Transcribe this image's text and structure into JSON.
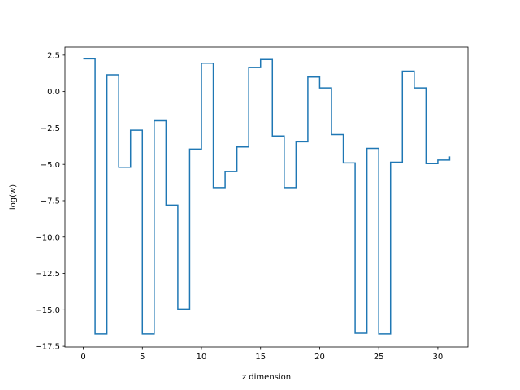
{
  "chart_data": {
    "type": "line",
    "drawstyle": "steps-post",
    "title": "",
    "xlabel": "z dimension",
    "ylabel": "log(w)",
    "xlim": [
      -1.55,
      32.55
    ],
    "ylim": [
      -17.55,
      3.05
    ],
    "xticks": [
      0,
      5,
      10,
      15,
      20,
      25,
      30
    ],
    "yticks": [
      2.5,
      0.0,
      -2.5,
      -5.0,
      -7.5,
      -10.0,
      -12.5,
      -15.0,
      -17.5
    ],
    "ytick_labels": [
      "2.5",
      "0.0",
      "−2.5",
      "−5.0",
      "−7.5",
      "−10.0",
      "−12.5",
      "−15.0",
      "−17.5"
    ],
    "grid": false,
    "legend": "none",
    "series": [
      {
        "color": "#1f77b4",
        "x": [
          0,
          1,
          2,
          3,
          4,
          5,
          6,
          7,
          8,
          9,
          10,
          11,
          12,
          13,
          14,
          15,
          16,
          17,
          18,
          19,
          20,
          21,
          22,
          23,
          24,
          25,
          26,
          27,
          28,
          29,
          30,
          31
        ],
        "y": [
          2.25,
          -16.65,
          1.15,
          -5.2,
          -2.65,
          -16.65,
          -2.0,
          -7.8,
          -14.95,
          -3.95,
          1.95,
          -6.6,
          -5.5,
          -3.8,
          1.65,
          2.2,
          -3.05,
          -6.6,
          -3.45,
          1.0,
          0.25,
          -2.95,
          -4.9,
          -16.6,
          -3.9,
          -16.65,
          -4.85,
          1.4,
          0.25,
          -4.95,
          -4.7,
          -4.45
        ]
      }
    ]
  }
}
